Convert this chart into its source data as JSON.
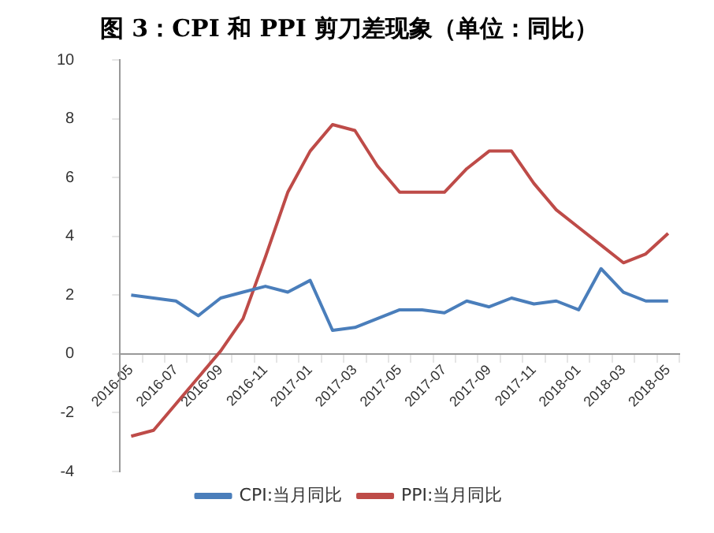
{
  "chart_data": {
    "type": "line",
    "title": "图 3：CPI 和 PPI 剪刀差现象（单位：同比）",
    "categories": [
      "2016-05",
      null,
      "2016-07",
      null,
      "2016-09",
      null,
      "2016-11",
      null,
      "2017-01",
      null,
      "2017-03",
      null,
      "2017-05",
      null,
      "2017-07",
      null,
      "2017-09",
      null,
      "2017-11",
      null,
      "2018-01",
      null,
      "2018-03",
      null,
      "2018-05"
    ],
    "series": [
      {
        "name": "CPI:当月同比",
        "color": "#4a7ebb",
        "values": [
          2.0,
          1.9,
          1.8,
          1.3,
          1.9,
          2.1,
          2.3,
          2.1,
          2.5,
          0.8,
          0.9,
          1.2,
          1.5,
          1.5,
          1.4,
          1.8,
          1.6,
          1.9,
          1.7,
          1.8,
          1.5,
          2.9,
          2.1,
          1.8,
          1.8
        ]
      },
      {
        "name": "PPI:当月同比",
        "color": "#be4b48",
        "values": [
          -2.8,
          -2.6,
          -1.7,
          -0.8,
          0.1,
          1.2,
          3.3,
          5.5,
          6.9,
          7.8,
          7.6,
          6.4,
          5.5,
          5.5,
          5.5,
          6.3,
          6.9,
          6.9,
          5.8,
          4.9,
          4.3,
          3.7,
          3.1,
          3.4,
          4.1
        ]
      }
    ],
    "ylim": [
      -4,
      10
    ],
    "yticks": [
      -4,
      -2,
      0,
      2,
      4,
      6,
      8,
      10
    ],
    "grid": false,
    "legend": "bottom",
    "marker": "none",
    "line_style": "solid"
  }
}
